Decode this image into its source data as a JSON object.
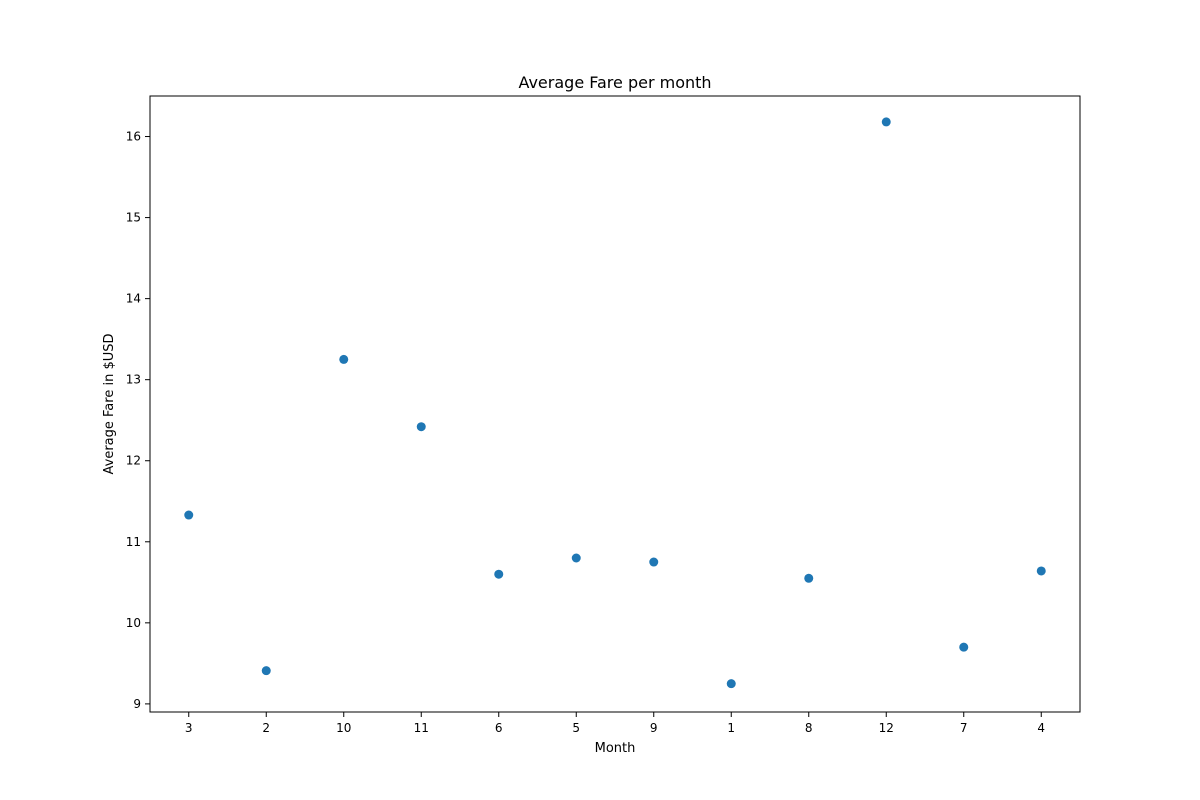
{
  "chart_data": {
    "type": "scatter",
    "title": "Average Fare per month",
    "xlabel": "Month",
    "ylabel": "Average Fare in $USD",
    "categories": [
      "3",
      "2",
      "10",
      "11",
      "6",
      "5",
      "9",
      "1",
      "8",
      "12",
      "7",
      "4"
    ],
    "values": [
      11.33,
      9.41,
      13.25,
      12.42,
      10.6,
      10.8,
      10.75,
      9.25,
      10.55,
      16.18,
      9.7,
      10.64
    ],
    "ylim": [
      8.9,
      16.5
    ],
    "yticks": [
      9,
      10,
      11,
      12,
      13,
      14,
      15,
      16
    ],
    "grid": false,
    "marker_color": "#1f77b4"
  }
}
